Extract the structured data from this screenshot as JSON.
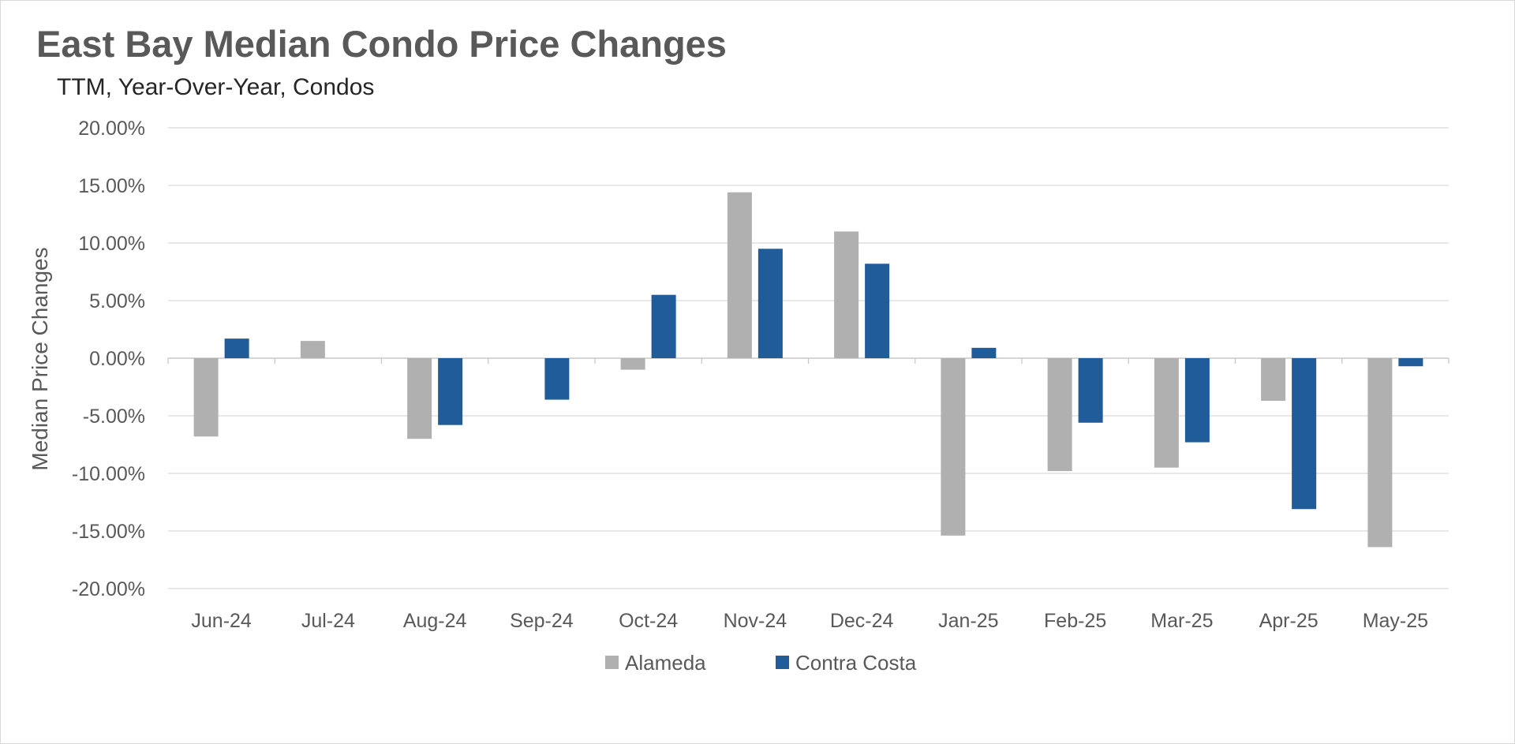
{
  "chart_data": {
    "type": "bar",
    "title": "East Bay Median Condo Price Changes",
    "subtitle": "TTM, Year-Over-Year,  Condos",
    "xlabel": "",
    "ylabel": "Median Price Changes",
    "ylim": [
      -20,
      20
    ],
    "yticks": [
      20,
      15,
      10,
      5,
      0,
      -5,
      -10,
      -15,
      -20
    ],
    "ytick_labels": [
      "20.00%",
      "15.00%",
      "10.00%",
      "5.00%",
      "0.00%",
      "-5.00%",
      "-10.00%",
      "-15.00%",
      "-20.00%"
    ],
    "grid": true,
    "legend_position": "bottom-center",
    "categories": [
      "Jun-24",
      "Jul-24",
      "Aug-24",
      "Sep-24",
      "Oct-24",
      "Nov-24",
      "Dec-24",
      "Jan-25",
      "Feb-25",
      "Mar-25",
      "Apr-25",
      "May-25"
    ],
    "series": [
      {
        "name": "Alameda",
        "color": "#b0b0b0",
        "values": [
          -6.8,
          1.5,
          -7.0,
          null,
          -1.0,
          14.4,
          11.0,
          -15.4,
          -9.8,
          -9.5,
          -3.7,
          -16.4
        ]
      },
      {
        "name": "Contra Costa",
        "color": "#1f5c99",
        "values": [
          1.7,
          null,
          -5.8,
          -3.6,
          5.5,
          9.5,
          8.2,
          0.9,
          -5.6,
          -7.3,
          -13.1,
          -0.7
        ]
      }
    ]
  }
}
